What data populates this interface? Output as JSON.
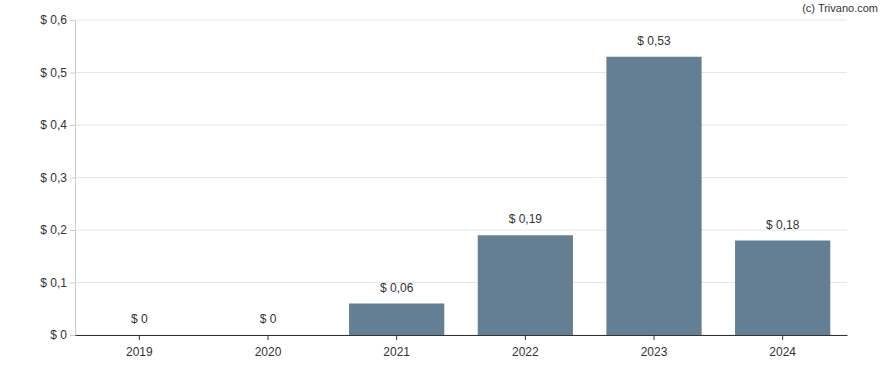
{
  "chart_data": {
    "type": "bar",
    "annotation": "(c) Trivano.com",
    "categories": [
      "2019",
      "2020",
      "2021",
      "2022",
      "2023",
      "2024"
    ],
    "values": [
      0,
      0,
      0.06,
      0.19,
      0.53,
      0.18
    ],
    "value_labels": [
      "$ 0",
      "$ 0",
      "$ 0,06",
      "$ 0,19",
      "$ 0,53",
      "$ 0,18"
    ],
    "data_labels": true,
    "color": "#647f93",
    "ylim": [
      0,
      0.6
    ],
    "yticks": [
      {
        "value": 0,
        "label": "$ 0"
      },
      {
        "value": 0.1,
        "label": "$ 0,1"
      },
      {
        "value": 0.2,
        "label": "$ 0,2"
      },
      {
        "value": 0.3,
        "label": "$ 0,3"
      },
      {
        "value": 0.4,
        "label": "$ 0,4"
      },
      {
        "value": 0.5,
        "label": "$ 0,5"
      },
      {
        "value": 0.6,
        "label": "$ 0,6"
      }
    ],
    "grid": true
  }
}
